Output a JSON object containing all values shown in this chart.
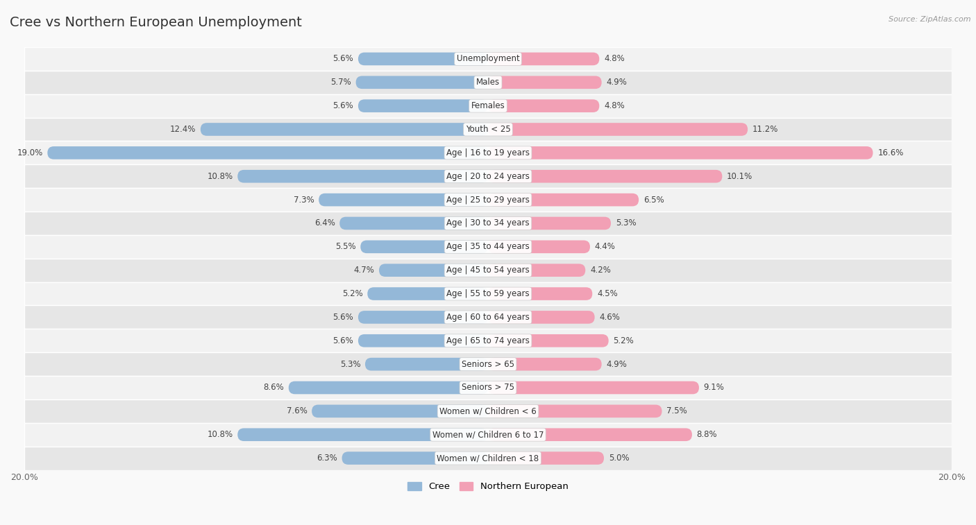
{
  "title": "Cree vs Northern European Unemployment",
  "source": "Source: ZipAtlas.com",
  "categories": [
    "Unemployment",
    "Males",
    "Females",
    "Youth < 25",
    "Age | 16 to 19 years",
    "Age | 20 to 24 years",
    "Age | 25 to 29 years",
    "Age | 30 to 34 years",
    "Age | 35 to 44 years",
    "Age | 45 to 54 years",
    "Age | 55 to 59 years",
    "Age | 60 to 64 years",
    "Age | 65 to 74 years",
    "Seniors > 65",
    "Seniors > 75",
    "Women w/ Children < 6",
    "Women w/ Children 6 to 17",
    "Women w/ Children < 18"
  ],
  "cree_values": [
    5.6,
    5.7,
    5.6,
    12.4,
    19.0,
    10.8,
    7.3,
    6.4,
    5.5,
    4.7,
    5.2,
    5.6,
    5.6,
    5.3,
    8.6,
    7.6,
    10.8,
    6.3
  ],
  "northern_european_values": [
    4.8,
    4.9,
    4.8,
    11.2,
    16.6,
    10.1,
    6.5,
    5.3,
    4.4,
    4.2,
    4.5,
    4.6,
    5.2,
    4.9,
    9.1,
    7.5,
    8.8,
    5.0
  ],
  "cree_color": "#94b8d8",
  "northern_european_color": "#f2a0b5",
  "bar_height": 0.55,
  "xlim": 20.0,
  "bg_color": "#f9f9f9",
  "row_bg_light": "#f2f2f2",
  "row_bg_dark": "#e6e6e6",
  "label_fontsize": 8.5,
  "title_fontsize": 14,
  "value_fontsize": 8.5
}
